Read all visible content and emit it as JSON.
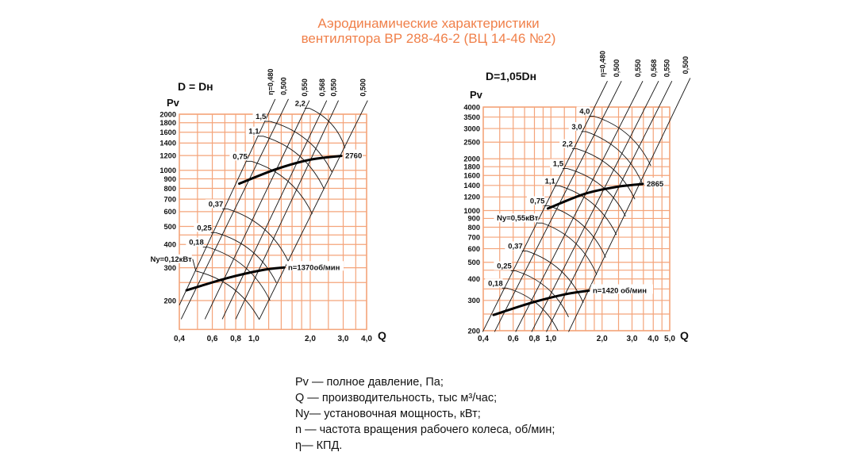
{
  "title": {
    "line1": "Аэродинамические характеристики",
    "line2": "вентилятора  ВР 288-46-2 (ВЦ 14-46 №2)",
    "color": "#f0804a"
  },
  "grid_color": "#f4a47a",
  "legend": [
    "Pv — полное давление, Па;",
    "Q  — производительность, тыс м³/час;",
    "Ny— установочная мощность, кВт;",
    "n — частота вращения рабочего колеса, об/мин;",
    "η— КПД."
  ],
  "chart_data": [
    {
      "type": "line",
      "title": "D = Dн",
      "xlabel": "Q",
      "ylabel": "Pv",
      "scale": "log-log",
      "xlim": [
        0.4,
        4.0
      ],
      "ylim": [
        140,
        2000
      ],
      "grid": true,
      "x_grid": [
        0.4,
        0.5,
        0.6,
        0.7,
        0.8,
        0.9,
        1.0,
        1.2,
        1.4,
        1.6,
        1.8,
        2.0,
        2.5,
        3.0,
        3.5,
        4.0
      ],
      "y_grid": [
        200,
        250,
        300,
        350,
        400,
        450,
        500,
        600,
        700,
        800,
        900,
        1000,
        1200,
        1400,
        1600,
        1800,
        2000
      ],
      "x_ticks": [
        {
          "v": 0.4,
          "label": "0,4"
        },
        {
          "v": 0.6,
          "label": "0,6"
        },
        {
          "v": 0.8,
          "label": "0,8"
        },
        {
          "v": 1.0,
          "label": "1,0"
        },
        {
          "v": 2.0,
          "label": "2,0"
        },
        {
          "v": 3.0,
          "label": "3,0"
        },
        {
          "v": 4.0,
          "label": "4,0"
        }
      ],
      "y_ticks": [
        {
          "v": 2000,
          "label": "2000"
        },
        {
          "v": 1800,
          "label": "1800"
        },
        {
          "v": 1600,
          "label": "1600"
        },
        {
          "v": 1400,
          "label": "1400"
        },
        {
          "v": 1200,
          "label": "1200"
        },
        {
          "v": 1000,
          "label": "1000"
        },
        {
          "v": 900,
          "label": "900"
        },
        {
          "v": 800,
          "label": "800"
        },
        {
          "v": 700,
          "label": "700"
        },
        {
          "v": 600,
          "label": "600"
        },
        {
          "v": 500,
          "label": "500"
        },
        {
          "v": 400,
          "label": "400"
        },
        {
          "v": 300,
          "label": "300"
        },
        {
          "v": 200,
          "label": "200"
        }
      ],
      "efficiency_lines": [
        {
          "label": "η=0,480",
          "from": [
            0.4,
            189
          ],
          "to": [
            1.3,
            2412
          ]
        },
        {
          "label": "0,500",
          "from": [
            0.409,
            159
          ],
          "to": [
            1.53,
            2412
          ]
        },
        {
          "label": "0,550",
          "from": [
            0.548,
            159
          ],
          "to": [
            1.98,
            2370
          ]
        },
        {
          "label": "0,568",
          "from": [
            0.678,
            159
          ],
          "to": [
            2.45,
            2370
          ]
        },
        {
          "label": "0,550",
          "from": [
            0.8,
            159
          ],
          "to": [
            2.83,
            2370
          ]
        },
        {
          "label": "0,500",
          "from": [
            1.07,
            159
          ],
          "to": [
            4.05,
            2370
          ]
        }
      ],
      "power_curves": [
        {
          "label": "Ny=0,12кВт",
          "from": [
            0.49,
            288
          ],
          "to": [
            1.07,
            158
          ]
        },
        {
          "label": "0,18",
          "from": [
            0.567,
            387
          ],
          "to": [
            1.22,
            200
          ]
        },
        {
          "label": "0,25",
          "from": [
            0.625,
            463
          ],
          "to": [
            1.32,
            249
          ]
        },
        {
          "label": "0,37",
          "from": [
            0.72,
            621
          ],
          "to": [
            1.53,
            323
          ]
        },
        {
          "label": "0,75",
          "from": [
            0.97,
            1118
          ],
          "to": [
            2.05,
            583
          ]
        },
        {
          "label": "1,1",
          "from": [
            1.12,
            1524
          ],
          "to": [
            2.37,
            795
          ]
        },
        {
          "label": "1,5",
          "from": [
            1.22,
            1830
          ],
          "to": [
            2.61,
            980
          ]
        },
        {
          "label": "2,2",
          "from": [
            1.98,
            2152
          ],
          "to": [
            3.07,
            1317
          ]
        }
      ],
      "speed_curves": [
        {
          "label": "n=1370об/мин",
          "points": [
            [
              0.437,
              227
            ],
            [
              0.72,
              264
            ],
            [
              1.1,
              291
            ],
            [
              1.45,
              301
            ]
          ]
        },
        {
          "label": "2760",
          "points": [
            [
              0.836,
              848
            ],
            [
              1.32,
              1015
            ],
            [
              1.98,
              1138
            ],
            [
              2.93,
              1194
            ]
          ]
        }
      ]
    },
    {
      "type": "line",
      "title": "D=1,05Dн",
      "xlabel": "Q",
      "ylabel": "Pv",
      "scale": "log-log",
      "xlim": [
        0.4,
        5.0
      ],
      "ylim": [
        200,
        4000
      ],
      "grid": true,
      "x_grid": [
        0.4,
        0.5,
        0.6,
        0.7,
        0.8,
        0.9,
        1.0,
        1.2,
        1.4,
        1.6,
        1.8,
        2.0,
        2.5,
        3.0,
        3.5,
        4.0,
        4.5,
        5.0
      ],
      "y_grid": [
        200,
        250,
        300,
        350,
        400,
        450,
        500,
        600,
        700,
        800,
        900,
        1000,
        1200,
        1400,
        1600,
        1800,
        2000,
        2500,
        3000,
        3500,
        4000
      ],
      "x_ticks": [
        {
          "v": 0.4,
          "label": "0,4"
        },
        {
          "v": 0.6,
          "label": "0,6"
        },
        {
          "v": 0.8,
          "label": "0,8"
        },
        {
          "v": 1.0,
          "label": "1,0"
        },
        {
          "v": 2.0,
          "label": "2,0"
        },
        {
          "v": 3.0,
          "label": "3,0"
        },
        {
          "v": 4.0,
          "label": "4,0"
        },
        {
          "v": 5.0,
          "label": "5,0"
        }
      ],
      "y_ticks": [
        {
          "v": 4000,
          "label": "4000"
        },
        {
          "v": 3500,
          "label": "3500"
        },
        {
          "v": 3000,
          "label": "3000"
        },
        {
          "v": 2500,
          "label": "2500"
        },
        {
          "v": 2000,
          "label": "2000"
        },
        {
          "v": 1800,
          "label": "1800"
        },
        {
          "v": 1600,
          "label": "1600"
        },
        {
          "v": 1400,
          "label": "1400"
        },
        {
          "v": 1200,
          "label": "1200"
        },
        {
          "v": 1000,
          "label": "1000"
        },
        {
          "v": 900,
          "label": "900"
        },
        {
          "v": 800,
          "label": "800"
        },
        {
          "v": 700,
          "label": "700"
        },
        {
          "v": 600,
          "label": "600"
        },
        {
          "v": 500,
          "label": "500"
        },
        {
          "v": 400,
          "label": "400"
        },
        {
          "v": 300,
          "label": "300"
        },
        {
          "v": 200,
          "label": "200"
        }
      ],
      "efficiency_lines": [
        {
          "label": "η=0,480",
          "from": [
            0.397,
            197
          ],
          "to": [
            2.15,
            5667
          ]
        },
        {
          "label": "0,500",
          "from": [
            0.466,
            197
          ],
          "to": [
            2.6,
            5667
          ]
        },
        {
          "label": "0,550",
          "from": [
            0.62,
            197
          ],
          "to": [
            3.47,
            5667
          ]
        },
        {
          "label": "0,568",
          "from": [
            0.77,
            197
          ],
          "to": [
            4.3,
            5667
          ]
        },
        {
          "label": "0,550",
          "from": [
            0.94,
            197
          ],
          "to": [
            5.15,
            5667
          ]
        },
        {
          "label": "0,500",
          "from": [
            1.27,
            197
          ],
          "to": [
            6.6,
            5900
          ]
        }
      ],
      "power_curves": [
        {
          "label": "0,18",
          "from": [
            0.55,
            354
          ],
          "to": [
            1.1,
            200
          ]
        },
        {
          "label": "0,25",
          "from": [
            0.62,
            446
          ],
          "to": [
            1.27,
            240
          ]
        },
        {
          "label": "0,37",
          "from": [
            0.72,
            582
          ],
          "to": [
            1.55,
            291
          ]
        },
        {
          "label": "Ny=0,55кВт",
          "from": [
            0.89,
            846
          ],
          "to": [
            1.86,
            423
          ]
        },
        {
          "label": "0,75",
          "from": [
            0.97,
            1066
          ],
          "to": [
            2.1,
            533
          ]
        },
        {
          "label": "1,1",
          "from": [
            1.12,
            1393
          ],
          "to": [
            2.43,
            722
          ]
        },
        {
          "label": "1,5",
          "from": [
            1.25,
            1755
          ],
          "to": [
            2.75,
            926
          ]
        },
        {
          "label": "2,2",
          "from": [
            1.42,
            2288
          ],
          "to": [
            3.12,
            1164
          ]
        },
        {
          "label": "3,0",
          "from": [
            1.61,
            2880
          ],
          "to": [
            3.47,
            1416
          ]
        },
        {
          "label": "4,0",
          "from": [
            1.79,
            3540
          ],
          "to": [
            3.87,
            1820
          ]
        }
      ],
      "speed_curves": [
        {
          "label": "n=1420 об/мин",
          "points": [
            [
              0.46,
              247
            ],
            [
              0.77,
              291
            ],
            [
              1.2,
              325
            ],
            [
              1.67,
              342
            ]
          ]
        },
        {
          "label": "2865",
          "points": [
            [
              0.96,
              1028
            ],
            [
              1.58,
              1250
            ],
            [
              2.4,
              1370
            ],
            [
              3.47,
              1427
            ]
          ]
        }
      ]
    }
  ]
}
